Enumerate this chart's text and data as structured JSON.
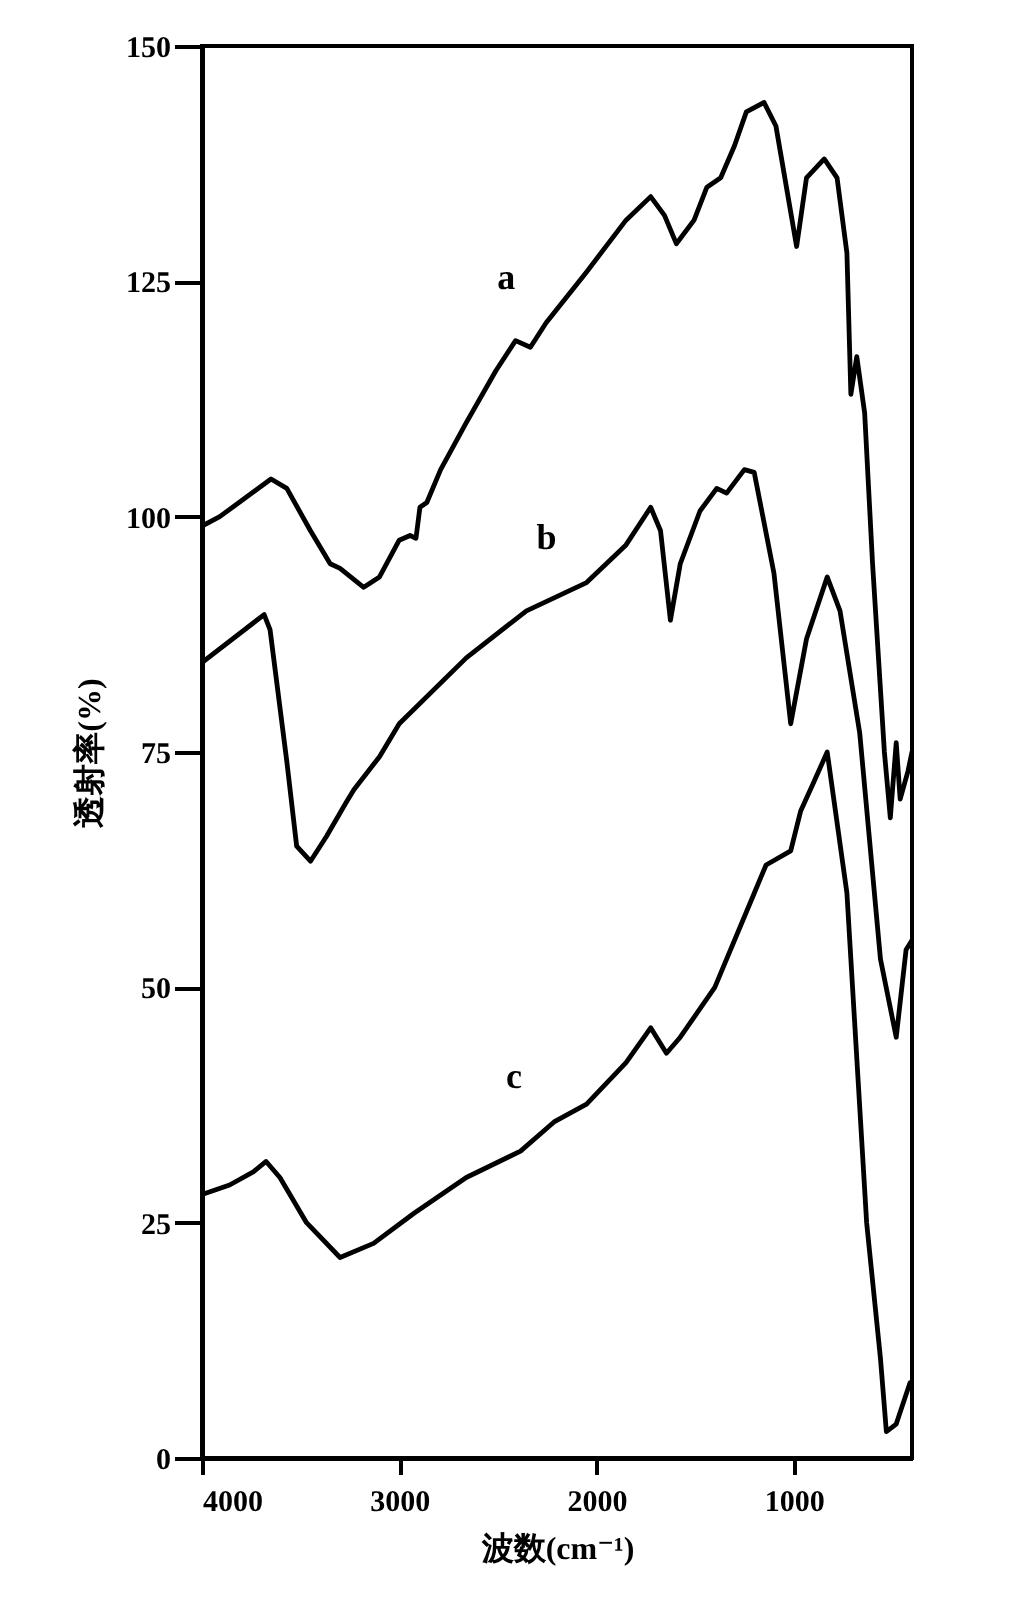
{
  "chart_data": {
    "type": "line",
    "xlabel": "波数(cm⁻¹)",
    "ylabel": "透射率(%)",
    "xlim": [
      4000,
      400
    ],
    "xticks": [
      4000,
      3000,
      2000,
      1000
    ],
    "ylim": [
      0,
      150
    ],
    "yticks": [
      0,
      25,
      50,
      75,
      100,
      125,
      150
    ],
    "grid": false,
    "line_style": "solid",
    "series": [
      {
        "name": "a",
        "color": "#000000",
        "x": [
          4000,
          3910,
          3650,
          3570,
          3450,
          3350,
          3300,
          3180,
          3100,
          3000,
          2945,
          2915,
          2895,
          2860,
          2790,
          2660,
          2510,
          2410,
          2335,
          2255,
          2050,
          1850,
          1725,
          1655,
          1595,
          1505,
          1440,
          1370,
          1300,
          1240,
          1150,
          1090,
          985,
          935,
          845,
          780,
          730,
          710,
          680,
          640,
          600,
          540,
          510,
          480,
          460,
          420,
          400
        ],
        "values": [
          99,
          100,
          104,
          103,
          98.5,
          95,
          94.5,
          92.5,
          93.6,
          97.5,
          98,
          97.7,
          101,
          101.5,
          105,
          110,
          115.5,
          118.7,
          118,
          120.6,
          126,
          131.5,
          134,
          132,
          129,
          131.5,
          135,
          136,
          139.4,
          143,
          144,
          141.5,
          128.7,
          136,
          138,
          136,
          128,
          113,
          117,
          111,
          95,
          75,
          68,
          76,
          70,
          73,
          75
        ]
      },
      {
        "name": "b",
        "color": "#000000",
        "x": [
          4000,
          3685,
          3655,
          3570,
          3520,
          3450,
          3370,
          3270,
          3230,
          3100,
          3000,
          2660,
          2355,
          2050,
          1850,
          1725,
          1675,
          1625,
          1575,
          1475,
          1390,
          1340,
          1250,
          1200,
          1100,
          1015,
          935,
          830,
          765,
          665,
          560,
          480,
          430,
          400
        ],
        "values": [
          84.5,
          89.6,
          88,
          74,
          65,
          63.4,
          66,
          69.6,
          71,
          74.5,
          78,
          85,
          90,
          93,
          97,
          101,
          98.5,
          89,
          95,
          100.6,
          103,
          102.5,
          105,
          104.7,
          94,
          78,
          87,
          93.6,
          90,
          77,
          53,
          44.7,
          54,
          55
        ]
      },
      {
        "name": "c",
        "color": "#000000",
        "x": [
          4000,
          3860,
          3740,
          3675,
          3605,
          3470,
          3300,
          3130,
          2925,
          2660,
          2385,
          2215,
          2050,
          1850,
          1725,
          1645,
          1575,
          1400,
          1200,
          1140,
          1015,
          965,
          900,
          830,
          730,
          630,
          560,
          530,
          480,
          410
        ],
        "values": [
          28,
          29,
          30.4,
          31.5,
          29.8,
          25,
          21.3,
          22.8,
          26,
          29.8,
          32.6,
          35.7,
          37.6,
          42,
          45.7,
          43,
          44.7,
          50,
          60,
          63,
          64.5,
          68.7,
          71.7,
          75,
          60,
          25,
          10.6,
          2.8,
          3.6,
          8
        ]
      }
    ]
  }
}
